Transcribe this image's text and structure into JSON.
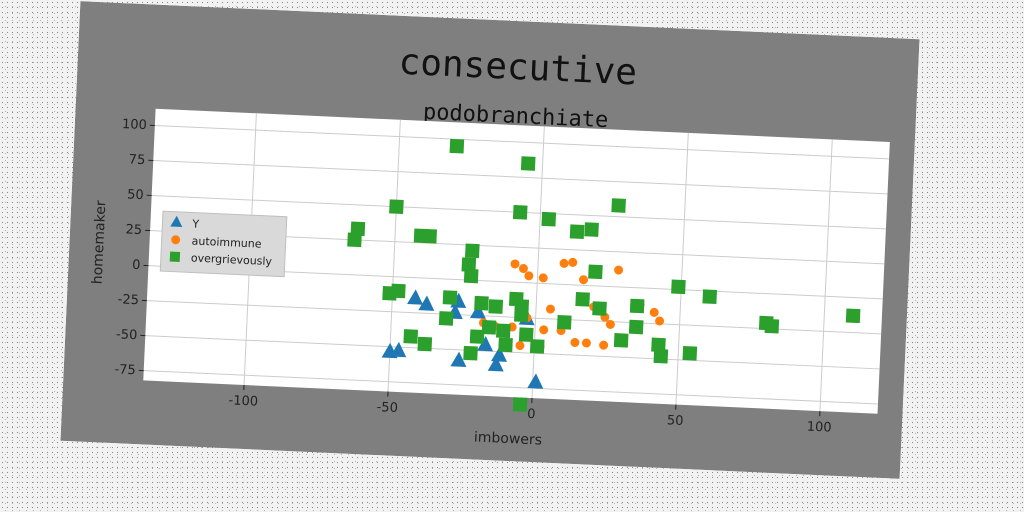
{
  "chart_data": {
    "type": "scatter",
    "title": "consecutive",
    "subtitle": "podobranchiate",
    "xlabel": "imbowers",
    "ylabel": "homemaker",
    "xlim": [
      -135,
      120
    ],
    "ylim": [
      -82,
      112
    ],
    "xticks": [
      -100,
      -50,
      0,
      50,
      100
    ],
    "yticks": [
      100,
      75,
      50,
      25,
      0,
      -25,
      -50,
      -75
    ],
    "grid": true,
    "legend_position": "center-left",
    "series": [
      {
        "name": "Y",
        "marker": "triangle",
        "color": "#1f77b4",
        "points": [
          [
            -50,
            -53
          ],
          [
            -47,
            -52
          ],
          [
            -42,
            -14
          ],
          [
            -38,
            -18
          ],
          [
            -28,
            -23
          ],
          [
            -27,
            -15
          ],
          [
            -26,
            -57
          ],
          [
            -20,
            -22
          ],
          [
            -17,
            -45
          ],
          [
            -13,
            -59
          ],
          [
            -12,
            -52
          ],
          [
            -3,
            -25
          ],
          [
            1,
            -70
          ]
        ]
      },
      {
        "name": "autoimmune",
        "marker": "circle",
        "color": "#ff7f0e",
        "points": [
          [
            -8,
            13
          ],
          [
            -5,
            10
          ],
          [
            -3,
            5
          ],
          [
            2,
            4
          ],
          [
            9,
            15
          ],
          [
            12,
            16
          ],
          [
            16,
            4
          ],
          [
            28,
            12
          ],
          [
            20,
            -15
          ],
          [
            5,
            -18
          ],
          [
            -3,
            -25
          ],
          [
            -8,
            -32
          ],
          [
            -18,
            -30
          ],
          [
            -14,
            -32
          ],
          [
            3,
            -33
          ],
          [
            9,
            -33
          ],
          [
            24,
            -22
          ],
          [
            26,
            -27
          ],
          [
            36,
            -12
          ],
          [
            41,
            -17
          ],
          [
            43,
            -23
          ],
          [
            14,
            -41
          ],
          [
            18,
            -41
          ],
          [
            24,
            -42
          ],
          [
            2,
            -45
          ],
          [
            -5,
            -45
          ]
        ]
      },
      {
        "name": "overgrievously",
        "marker": "square",
        "color": "#2ca02c",
        "points": [
          [
            -30,
            95
          ],
          [
            -5,
            85
          ],
          [
            -63,
            33
          ],
          [
            -50,
            50
          ],
          [
            -7,
            50
          ],
          [
            3,
            46
          ],
          [
            13,
            38
          ],
          [
            18,
            40
          ],
          [
            27,
            58
          ],
          [
            -64,
            25
          ],
          [
            -41,
            30
          ],
          [
            -38,
            30
          ],
          [
            -23,
            21
          ],
          [
            -24,
            11
          ],
          [
            -23,
            3
          ],
          [
            20,
            10
          ],
          [
            -51,
            -12
          ],
          [
            -48,
            -10
          ],
          [
            -30,
            -13
          ],
          [
            -19,
            -16
          ],
          [
            -14,
            -18
          ],
          [
            -7,
            -12
          ],
          [
            -5,
            -17
          ],
          [
            -5,
            -23
          ],
          [
            10,
            -27
          ],
          [
            16,
            -10
          ],
          [
            22,
            -16
          ],
          [
            35,
            -13
          ],
          [
            49,
            2
          ],
          [
            60,
            -4
          ],
          [
            80,
            -21
          ],
          [
            82,
            -23
          ],
          [
            110,
            -13
          ],
          [
            35,
            -28
          ],
          [
            30,
            -38
          ],
          [
            43,
            -40
          ],
          [
            44,
            -48
          ],
          [
            54,
            -45
          ],
          [
            -31,
            -28
          ],
          [
            -16,
            -33
          ],
          [
            -11,
            -35
          ],
          [
            -20,
            -40
          ],
          [
            -10,
            -45
          ],
          [
            -38,
            -47
          ],
          [
            -43,
            -42
          ],
          [
            -22,
            -52
          ],
          [
            1,
            -45
          ],
          [
            -3,
            -37
          ],
          [
            -4,
            -87
          ]
        ]
      }
    ]
  }
}
